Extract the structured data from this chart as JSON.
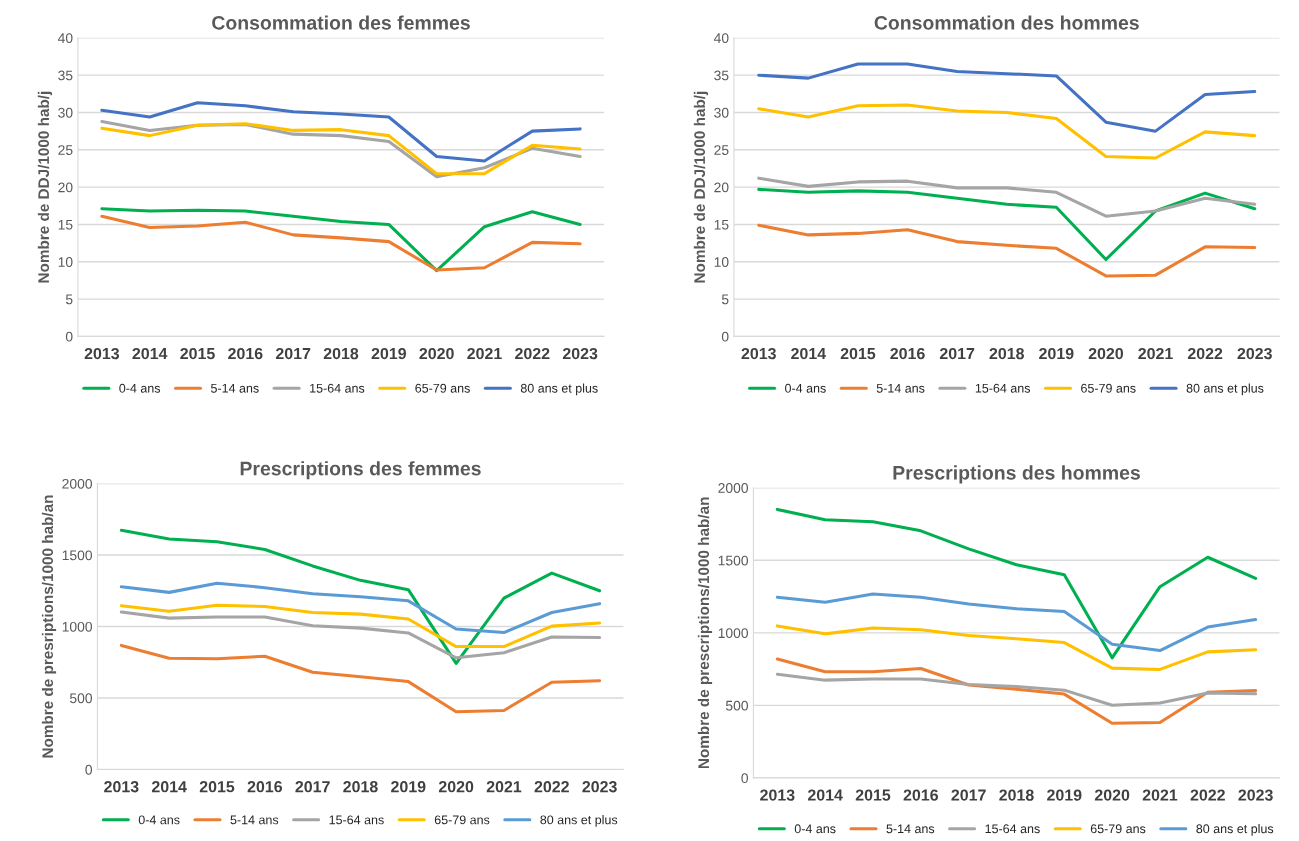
{
  "chart_data": [
    {
      "type": "line",
      "title": "Consommation des femmes",
      "ylabel": "Nombre de DDJ/1000 hab/j",
      "categories": [
        "2013",
        "2014",
        "2015",
        "2016",
        "2017",
        "2018",
        "2019",
        "2020",
        "2021",
        "2022",
        "2023"
      ],
      "ylim": [
        0,
        40
      ],
      "yticks": [
        0,
        5,
        10,
        15,
        20,
        25,
        30,
        35,
        40
      ],
      "grid": "y",
      "legend": "bottom",
      "series": [
        {
          "name": "0-4 ans",
          "color": "#00b050",
          "values": [
            17.1,
            16.8,
            16.9,
            16.8,
            16.1,
            15.4,
            15.0,
            8.8,
            14.7,
            16.7,
            15.0
          ]
        },
        {
          "name": "5-14 ans",
          "color": "#ed7d31",
          "values": [
            16.1,
            14.6,
            14.8,
            15.3,
            13.6,
            13.2,
            12.7,
            8.9,
            9.2,
            12.6,
            12.4
          ]
        },
        {
          "name": "15-64 ans",
          "color": "#a5a5a5",
          "values": [
            28.8,
            27.6,
            28.3,
            28.4,
            27.1,
            26.9,
            26.1,
            21.4,
            22.6,
            25.2,
            24.1
          ]
        },
        {
          "name": "65-79 ans",
          "color": "#ffc000",
          "values": [
            27.9,
            26.9,
            28.3,
            28.5,
            27.6,
            27.7,
            26.9,
            21.8,
            21.8,
            25.6,
            25.1
          ]
        },
        {
          "name": "80 ans et plus",
          "color": "#4472c4",
          "values": [
            30.3,
            29.4,
            31.3,
            30.9,
            30.1,
            29.8,
            29.4,
            24.1,
            23.5,
            27.5,
            27.8
          ]
        }
      ]
    },
    {
      "type": "line",
      "title": "Consommation des hommes",
      "ylabel": "Nombre de DDJ/1000 hab/j",
      "categories": [
        "2013",
        "2014",
        "2015",
        "2016",
        "2017",
        "2018",
        "2019",
        "2020",
        "2021",
        "2022",
        "2023"
      ],
      "ylim": [
        0,
        40
      ],
      "yticks": [
        0,
        5,
        10,
        15,
        20,
        25,
        30,
        35,
        40
      ],
      "grid": "y",
      "legend": "bottom",
      "series": [
        {
          "name": "0-4 ans",
          "color": "#00b050",
          "values": [
            19.7,
            19.3,
            19.5,
            19.3,
            18.5,
            17.7,
            17.3,
            10.3,
            16.8,
            19.2,
            17.1
          ]
        },
        {
          "name": "5-14 ans",
          "color": "#ed7d31",
          "values": [
            14.9,
            13.6,
            13.8,
            14.3,
            12.7,
            12.2,
            11.8,
            8.1,
            8.2,
            12.0,
            11.9
          ]
        },
        {
          "name": "15-64 ans",
          "color": "#a5a5a5",
          "values": [
            21.2,
            20.1,
            20.7,
            20.8,
            19.9,
            19.9,
            19.3,
            16.1,
            16.8,
            18.5,
            17.7
          ]
        },
        {
          "name": "65-79 ans",
          "color": "#ffc000",
          "values": [
            30.5,
            29.4,
            30.9,
            31.0,
            30.2,
            30.0,
            29.2,
            24.1,
            23.9,
            27.4,
            26.9
          ]
        },
        {
          "name": "80 ans et plus",
          "color": "#4472c4",
          "values": [
            35.0,
            34.6,
            36.5,
            36.5,
            35.5,
            35.2,
            34.9,
            28.7,
            27.5,
            32.4,
            32.8
          ]
        }
      ]
    },
    {
      "type": "line",
      "title": "Prescriptions des femmes",
      "ylabel": "Nombre de presriptions/1000 hab/an",
      "categories": [
        "2013",
        "2014",
        "2015",
        "2016",
        "2017",
        "2018",
        "2019",
        "2020",
        "2021",
        "2022",
        "2023"
      ],
      "ylim": [
        0,
        2000
      ],
      "yticks": [
        0,
        500,
        1000,
        1500,
        2000
      ],
      "grid": "y",
      "legend": "bottom",
      "series": [
        {
          "name": "0-4 ans",
          "color": "#00b050",
          "values": [
            1674,
            1612,
            1593,
            1539,
            1424,
            1323,
            1258,
            742,
            1199,
            1374,
            1250
          ]
        },
        {
          "name": "5-14 ans",
          "color": "#ed7d31",
          "values": [
            868,
            778,
            775,
            792,
            680,
            649,
            615,
            404,
            413,
            610,
            621
          ]
        },
        {
          "name": "15-64 ans",
          "color": "#a5a5a5",
          "values": [
            1101,
            1059,
            1067,
            1067,
            1006,
            989,
            955,
            781,
            817,
            927,
            924
          ]
        },
        {
          "name": "65-79 ans",
          "color": "#ffc000",
          "values": [
            1146,
            1107,
            1149,
            1140,
            1098,
            1087,
            1053,
            860,
            860,
            1003,
            1025
          ]
        },
        {
          "name": "80 ans et plus",
          "color": "#5b9bd5",
          "values": [
            1278,
            1239,
            1303,
            1272,
            1230,
            1208,
            1180,
            983,
            958,
            1098,
            1160
          ]
        }
      ]
    },
    {
      "type": "line",
      "title": "Prescriptions des hommes",
      "ylabel": "Nombre de prescriptions/1000 hab/an",
      "categories": [
        "2013",
        "2014",
        "2015",
        "2016",
        "2017",
        "2018",
        "2019",
        "2020",
        "2021",
        "2022",
        "2023"
      ],
      "ylim": [
        0,
        2000
      ],
      "yticks": [
        0,
        500,
        1000,
        1500,
        2000
      ],
      "grid": "y",
      "legend": "bottom",
      "series": [
        {
          "name": "0-4 ans",
          "color": "#00b050",
          "values": [
            1851,
            1780,
            1766,
            1703,
            1579,
            1469,
            1400,
            828,
            1318,
            1521,
            1376
          ]
        },
        {
          "name": "5-14 ans",
          "color": "#ed7d31",
          "values": [
            820,
            732,
            732,
            754,
            641,
            611,
            578,
            377,
            382,
            591,
            602
          ]
        },
        {
          "name": "15-64 ans",
          "color": "#a5a5a5",
          "values": [
            715,
            674,
            682,
            682,
            644,
            630,
            605,
            501,
            517,
            586,
            580
          ]
        },
        {
          "name": "65-79 ans",
          "color": "#ffc000",
          "values": [
            1048,
            993,
            1034,
            1021,
            982,
            960,
            933,
            757,
            748,
            869,
            883
          ]
        },
        {
          "name": "80 ans et plus",
          "color": "#5b9bd5",
          "values": [
            1246,
            1211,
            1268,
            1246,
            1199,
            1166,
            1147,
            922,
            878,
            1040,
            1092
          ]
        }
      ]
    }
  ]
}
